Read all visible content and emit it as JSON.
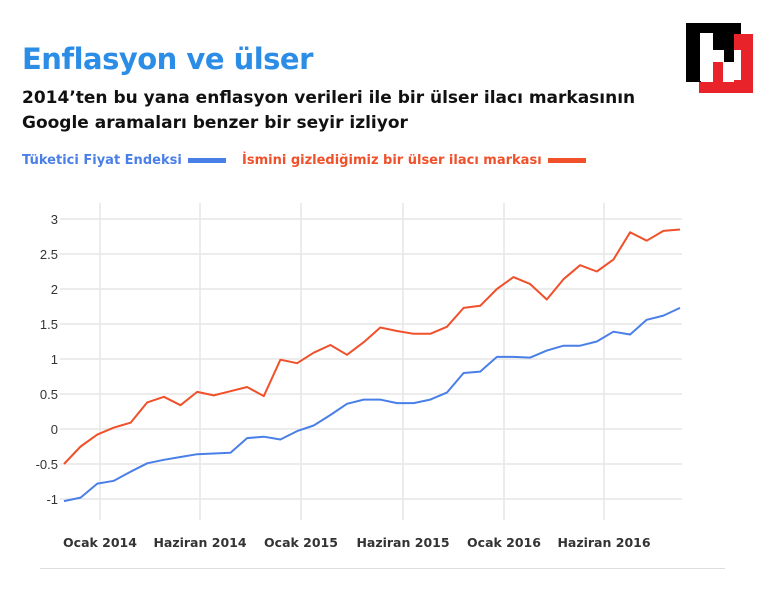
{
  "title": "Enflasyon ve ülser",
  "subtitle": "2014’ten bu yana enflasyon verileri ile bir ülser ilacı markasının Google aramaları benzer bir seyir izliyor",
  "colors": {
    "title": "#2b8de6",
    "series1": "#4a7fe8",
    "series2": "#f0502a"
  },
  "logo": {
    "icon": "h-logo",
    "colors": [
      "#000000",
      "#e8242a"
    ]
  },
  "chart_data": {
    "type": "line",
    "title": "",
    "xlabel": "",
    "ylabel": "",
    "ylim": [
      -1,
      3
    ],
    "yticks": [
      "3",
      "2.5",
      "2",
      "1.5",
      "1",
      "0.5",
      "0",
      "-0.5",
      "-1"
    ],
    "ytick_values": [
      3,
      2.5,
      2,
      1.5,
      1,
      0.5,
      0,
      -0.5,
      -1
    ],
    "xticks": [
      "Ocak 2014",
      "Haziran 2014",
      "Ocak 2015",
      "Haziran 2015",
      "Ocak 2016",
      "Haziran 2016"
    ],
    "grid": true,
    "legend": "top-left",
    "series": [
      {
        "name": "Tüketici Fiyat Endeksi",
        "color": "#4a7fe8",
        "values": [
          -1.03,
          -0.98,
          -0.78,
          -0.74,
          -0.61,
          -0.49,
          -0.44,
          -0.4,
          -0.36,
          -0.35,
          -0.34,
          -0.13,
          -0.11,
          -0.15,
          -0.03,
          0.05,
          0.2,
          0.36,
          0.42,
          0.42,
          0.37,
          0.37,
          0.42,
          0.52,
          0.8,
          0.82,
          1.03,
          1.03,
          1.02,
          1.12,
          1.19,
          1.19,
          1.25,
          1.39,
          1.35,
          1.56,
          1.62,
          1.73
        ]
      },
      {
        "name": "İsmini gizlediğimiz bir ülser ilacı markası",
        "color": "#f0502a",
        "values": [
          -0.5,
          -0.25,
          -0.08,
          0.02,
          0.09,
          0.38,
          0.46,
          0.34,
          0.53,
          0.48,
          0.54,
          0.6,
          0.47,
          0.99,
          0.94,
          1.09,
          1.2,
          1.06,
          1.24,
          1.45,
          1.4,
          1.36,
          1.36,
          1.46,
          1.73,
          1.76,
          2.0,
          2.17,
          2.07,
          1.85,
          2.14,
          2.34,
          2.25,
          2.42,
          2.81,
          2.69,
          2.83,
          2.85
        ]
      }
    ]
  }
}
